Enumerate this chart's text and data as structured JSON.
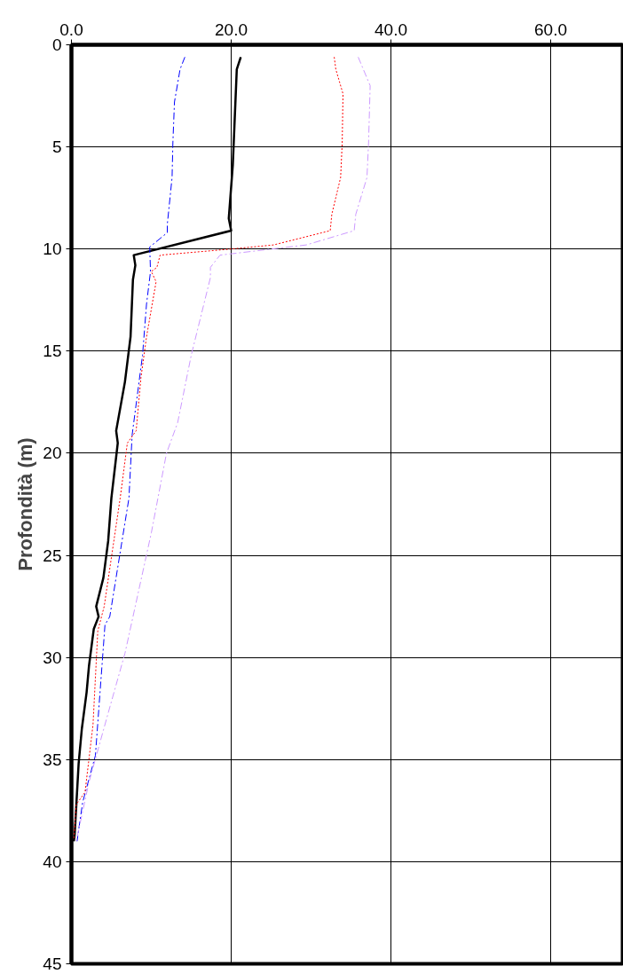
{
  "chart_data": {
    "type": "line",
    "ylabel": "Profondità (m)",
    "xlim": [
      0,
      69
    ],
    "ylim": [
      45,
      0
    ],
    "xticks": [
      {
        "value": 0,
        "label": "0.0"
      },
      {
        "value": 20,
        "label": "20.0"
      },
      {
        "value": 40,
        "label": "40.0"
      },
      {
        "value": 60,
        "label": "60.0"
      }
    ],
    "yticks": [
      0,
      5,
      10,
      15,
      20,
      25,
      30,
      35,
      40,
      45
    ],
    "grid": true,
    "marker": "none",
    "series": [
      {
        "color": "#000000",
        "line_style": "solid",
        "x": [
          21.2,
          20.7,
          20.2,
          19.7,
          20.0,
          7.8,
          8.0,
          7.7,
          7.4,
          6.7,
          5.6,
          5.8,
          5.0,
          4.6,
          4.0,
          3.1,
          3.4,
          2.8,
          2.2,
          1.9,
          1.3,
          0.9,
          0.4,
          0.3
        ],
        "values": [
          0.6,
          1.2,
          5.9,
          8.5,
          9.1,
          10.3,
          10.8,
          11.5,
          14.3,
          16.5,
          18.9,
          19.5,
          22.2,
          24.3,
          26.1,
          27.5,
          28.0,
          28.6,
          30.4,
          31.7,
          33.5,
          35.2,
          38.7,
          39.0
        ]
      },
      {
        "color": "#0000ff",
        "line_style": "dashed",
        "x": [
          14.2,
          13.6,
          12.9,
          12.7,
          12.6,
          12.0,
          12.0,
          9.8,
          9.9,
          9.4,
          8.9,
          7.6,
          7.2,
          4.8,
          4.2,
          3.0,
          1.4,
          0.7
        ],
        "values": [
          0.6,
          1.2,
          2.8,
          4.8,
          6.5,
          8.8,
          9.2,
          9.9,
          11.1,
          12.7,
          15.2,
          19.1,
          22.2,
          28.0,
          28.4,
          34.8,
          37.1,
          39.0
        ]
      },
      {
        "color": "#ff0000",
        "line_style": "dotted",
        "x": [
          32.9,
          33.1,
          34.0,
          33.9,
          33.7,
          32.6,
          32.4,
          25.3,
          20.0,
          11.1,
          10.7,
          10.0,
          10.6,
          9.4,
          8.7,
          8.1,
          7.0,
          6.1,
          4.1,
          3.3,
          2.7,
          1.7,
          0.6,
          0.3
        ],
        "values": [
          0.6,
          1.2,
          2.4,
          4.8,
          6.5,
          8.3,
          9.1,
          9.8,
          10.0,
          10.3,
          10.9,
          11.1,
          11.6,
          14.3,
          16.3,
          18.9,
          19.5,
          22.2,
          27.5,
          28.7,
          33.3,
          36.6,
          37.2,
          38.9
        ]
      },
      {
        "color": "#cc99ff",
        "line_style": "dashed",
        "x": [
          35.9,
          37.4,
          37.2,
          37.0,
          35.6,
          35.4,
          29.4,
          18.6,
          17.4,
          17.4,
          15.0,
          13.3,
          11.9,
          10.0,
          6.7,
          4.4,
          2.2,
          0.6
        ],
        "values": [
          0.6,
          2.0,
          4.8,
          6.5,
          8.3,
          9.1,
          9.8,
          10.3,
          10.9,
          11.4,
          15.2,
          18.5,
          20.0,
          23.9,
          29.8,
          33.0,
          36.1,
          39.0
        ]
      }
    ]
  }
}
